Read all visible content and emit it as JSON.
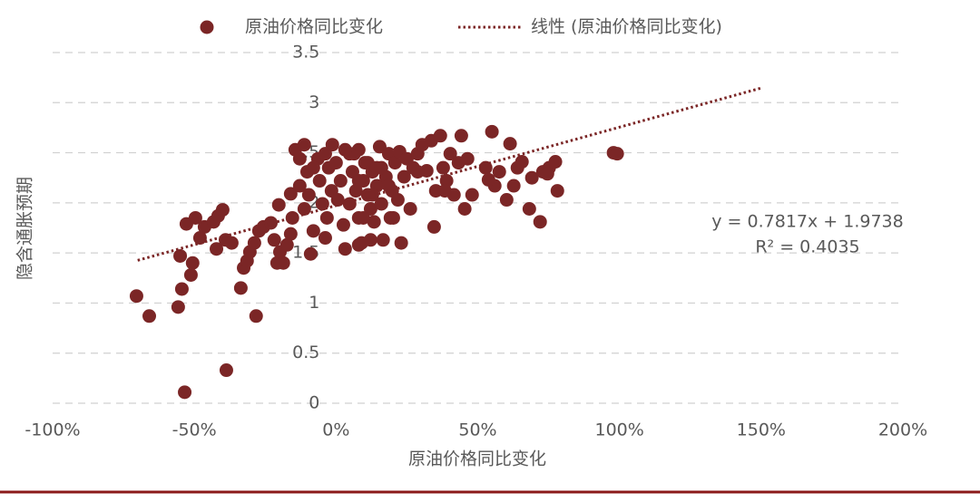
{
  "chart_data": {
    "type": "scatter",
    "x_label": "原油价格同比变化",
    "y_label": "隐含通胀预期",
    "annotations": [
      "y = 0.7817x + 1.9738",
      "R² = 0.4035"
    ],
    "xlim": [
      -100,
      200
    ],
    "xticks": [
      {
        "value": -100,
        "label": "-100%"
      },
      {
        "value": -50,
        "label": "-50%"
      },
      {
        "value": 0,
        "label": "0%"
      },
      {
        "value": 50,
        "label": "50%"
      },
      {
        "value": 100,
        "label": "100%"
      },
      {
        "value": 150,
        "label": "150%"
      },
      {
        "value": 200,
        "label": "200%"
      }
    ],
    "ylim": [
      0,
      3.5
    ],
    "yticks": [
      0,
      0.5,
      1,
      1.5,
      2,
      2.5,
      3,
      3.5
    ],
    "grid": true,
    "legend": "top",
    "series": [
      {
        "name": "原油价格同比变化",
        "color": "#7b2626",
        "mode": "markers",
        "x": [
          -70.4,
          -65.9,
          -55.7,
          -54.4,
          -53.4,
          -38.7,
          -28.2,
          -33.6,
          -51.2,
          -50.6,
          -55,
          -52.8,
          -49.6,
          -46.4,
          -48,
          -43.2,
          -41.6,
          -40,
          -42.2,
          -39,
          -36.8,
          -32.6,
          -31.4,
          -30.4,
          -28.8,
          -27.2,
          -25.6,
          -23,
          -21.8,
          -20.8,
          -19.8,
          -18.6,
          -17.3,
          -16,
          -15.4,
          -20.2,
          -16,
          -12.8,
          -11.2,
          -10.2,
          -8.96,
          -8,
          -9.6,
          -14.4,
          -12.8,
          -6.4,
          -5.8,
          -4.8,
          -3.8,
          -3.2,
          -2.6,
          -1.3,
          0,
          1.6,
          2.6,
          3.2,
          4.8,
          5.8,
          6.4,
          7,
          8,
          9,
          9.6,
          10.2,
          11.2,
          12.2,
          12.8,
          13.4,
          14.4,
          15.4,
          16,
          16.6,
          17.6,
          18.6,
          19.2,
          19.8,
          20.8,
          21.8,
          22.4,
          23,
          24,
          25,
          26.2,
          27.2,
          28.8,
          30.4,
          32,
          33.6,
          34.6,
          35.2,
          36.8,
          37.8,
          39,
          40.3,
          41.6,
          43.2,
          44.2,
          45.4,
          46.4,
          48,
          52.8,
          55,
          56,
          57.6,
          60.2,
          61.4,
          62.7,
          64,
          65.6,
          68.2,
          69.1,
          72,
          73,
          75.2,
          77.4,
          78.1,
          97.9,
          99.2,
          8,
          9.6,
          11.2,
          12.8,
          14.4,
          8,
          4.8,
          -3.8,
          -1.6,
          0.6,
          3.2,
          16,
          18.6,
          20.2,
          -8,
          -11.2,
          8,
          12.2,
          28.8,
          38.4,
          53.8,
          74.6
        ],
        "values": [
          1.07,
          0.87,
          0.96,
          1.14,
          0.11,
          0.33,
          0.87,
          1.15,
          1.28,
          1.4,
          1.47,
          1.79,
          1.85,
          1.76,
          1.65,
          1.81,
          1.87,
          1.93,
          1.54,
          1.63,
          1.6,
          1.35,
          1.42,
          1.51,
          1.6,
          1.72,
          1.76,
          1.8,
          1.63,
          1.4,
          1.51,
          1.4,
          1.58,
          1.69,
          1.85,
          1.98,
          2.09,
          2.17,
          1.94,
          2.31,
          1.49,
          1.72,
          2.08,
          2.53,
          2.44,
          2.44,
          2.22,
          1.99,
          1.65,
          1.85,
          2.35,
          2.58,
          2.4,
          2.22,
          1.78,
          1.54,
          1.99,
          2.31,
          2.49,
          2.12,
          1.85,
          1.6,
          2.22,
          2.4,
          2.08,
          1.94,
          2.31,
          1.81,
          2.17,
          2.56,
          1.99,
          1.63,
          2.26,
          2.49,
          1.85,
          2.12,
          2.4,
          2.03,
          2.51,
          1.6,
          2.26,
          2.44,
          1.94,
          2.35,
          2.49,
          2.58,
          2.32,
          2.62,
          1.76,
          2.12,
          2.67,
          2.35,
          2.22,
          2.49,
          2.08,
          2.4,
          2.67,
          1.94,
          2.44,
          2.08,
          2.35,
          2.71,
          2.17,
          2.31,
          2.03,
          2.59,
          2.17,
          2.35,
          2.41,
          1.94,
          2.25,
          1.81,
          2.31,
          2.35,
          2.41,
          2.12,
          2.5,
          2.49,
          2.22,
          1.85,
          2.4,
          2.08,
          2.35,
          2.53,
          2.49,
          2.49,
          2.12,
          2.03,
          2.53,
          2.35,
          2.17,
          1.85,
          2.35,
          2.58,
          1.58,
          1.63,
          2.31,
          2.12,
          2.23,
          2.29
        ]
      },
      {
        "name": "线性 (原油价格同比变化)",
        "color": "#7b2626",
        "mode": "dotted-line",
        "x": [
          -70,
          150
        ],
        "values": [
          1.426,
          3.146
        ]
      }
    ]
  }
}
